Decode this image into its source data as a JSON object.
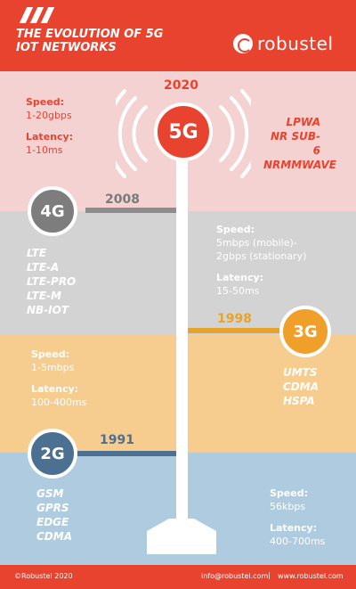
{
  "header": {
    "title_line1": "THE EVOLUTION OF 5G",
    "title_line2": "IOT NETWORKS",
    "brand": "robustel"
  },
  "generations": {
    "g5": {
      "label": "5G",
      "year": "2020",
      "speed_label": "Speed:",
      "speed": "1-20gbps",
      "latency_label": "Latency:",
      "latency": "1-10ms",
      "tech": [
        "LPWA",
        "NR SUB-6",
        "NRMMWAVE"
      ],
      "color": "#e8432f"
    },
    "g4": {
      "label": "4G",
      "year": "2008",
      "speed_label": "Speed:",
      "speed": "5mbps (mobile)-",
      "speed2": "2gbps (stationary)",
      "latency_label": "Latency:",
      "latency": "15-50ms",
      "tech": [
        "LTE",
        "LTE-A",
        "LTE-PRO",
        "LTE-M",
        "NB-IOT"
      ],
      "color": "#7d7d7d"
    },
    "g3": {
      "label": "3G",
      "year": "1998",
      "speed_label": "Speed:",
      "speed": "1-5mbps",
      "latency_label": "Latency:",
      "latency": "100-400ms",
      "tech": [
        "UMTS",
        "CDMA",
        "HSPA"
      ],
      "color": "#f0a02a"
    },
    "g2": {
      "label": "2G",
      "year": "1991",
      "speed_label": "Speed:",
      "speed": "56kbps",
      "latency_label": "Latency:",
      "latency": "400-700ms",
      "tech": [
        "GSM",
        "GPRS",
        "EDGE",
        "CDMA"
      ],
      "color": "#4c7091"
    }
  },
  "footer": {
    "copyright": "©Robustel 2020",
    "email": "info@robustel.com",
    "separator": "|",
    "website": "www.robustel.com"
  }
}
